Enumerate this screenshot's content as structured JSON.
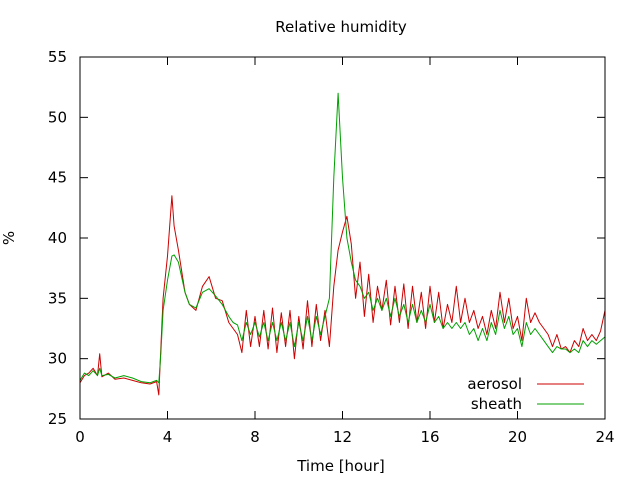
{
  "chart_data": {
    "type": "line",
    "title": "Relative humidity",
    "xlabel": "Time [hour]",
    "ylabel": "%",
    "xlim": [
      0,
      24
    ],
    "ylim": [
      25,
      55
    ],
    "xticks": [
      "0",
      "4",
      "8",
      "12",
      "16",
      "20",
      "24"
    ],
    "yticks": [
      "25",
      "30",
      "35",
      "40",
      "45",
      "50",
      "55"
    ],
    "grid": false,
    "legend_position": "bottom-right",
    "series": [
      {
        "name": "aerosol",
        "color": "#cc0000",
        "x": [
          0,
          0.2,
          0.4,
          0.6,
          0.8,
          0.9,
          1.0,
          1.3,
          1.6,
          2.0,
          2.4,
          2.8,
          3.2,
          3.5,
          3.6,
          3.7,
          3.8,
          4.0,
          4.2,
          4.3,
          4.5,
          4.8,
          5.0,
          5.3,
          5.6,
          5.9,
          6.2,
          6.5,
          6.8,
          7.0,
          7.2,
          7.4,
          7.6,
          7.8,
          8.0,
          8.2,
          8.4,
          8.6,
          8.8,
          9.0,
          9.2,
          9.4,
          9.6,
          9.8,
          10.0,
          10.2,
          10.4,
          10.6,
          10.8,
          11.0,
          11.2,
          11.4,
          11.6,
          11.8,
          12.0,
          12.2,
          12.4,
          12.6,
          12.8,
          13.0,
          13.2,
          13.4,
          13.6,
          13.8,
          14.0,
          14.2,
          14.4,
          14.6,
          14.8,
          15.0,
          15.2,
          15.4,
          15.6,
          15.8,
          16.0,
          16.2,
          16.4,
          16.6,
          16.8,
          17.0,
          17.2,
          17.4,
          17.6,
          17.8,
          18.0,
          18.2,
          18.4,
          18.6,
          18.8,
          19.0,
          19.2,
          19.4,
          19.6,
          19.8,
          20.0,
          20.2,
          20.4,
          20.6,
          20.8,
          21.0,
          21.2,
          21.4,
          21.6,
          21.8,
          22.0,
          22.2,
          22.4,
          22.6,
          22.8,
          23.0,
          23.2,
          23.4,
          23.6,
          23.8,
          24.0
        ],
        "y": [
          28.0,
          28.6,
          28.8,
          29.2,
          28.6,
          30.4,
          28.5,
          28.8,
          28.3,
          28.4,
          28.2,
          28.0,
          27.9,
          28.1,
          27.0,
          31.0,
          35.0,
          38.5,
          43.5,
          41.0,
          39.0,
          35.5,
          34.5,
          34.0,
          36.0,
          36.8,
          35.0,
          34.8,
          33.0,
          32.5,
          32.0,
          30.5,
          34.0,
          31.0,
          33.5,
          31.0,
          34.0,
          30.8,
          34.2,
          30.5,
          33.8,
          31.0,
          34.0,
          30.0,
          33.5,
          30.8,
          34.8,
          31.0,
          34.5,
          31.5,
          34.0,
          31.0,
          36.0,
          39.0,
          40.5,
          41.8,
          39.5,
          35.0,
          38.0,
          33.5,
          37.0,
          33.0,
          36.0,
          34.0,
          36.5,
          32.8,
          36.0,
          33.0,
          36.2,
          32.5,
          36.0,
          33.0,
          35.5,
          32.5,
          36.0,
          33.0,
          35.5,
          32.5,
          34.5,
          33.0,
          36.0,
          33.0,
          35.0,
          33.0,
          34.0,
          32.5,
          33.5,
          32.0,
          34.0,
          32.5,
          35.5,
          33.0,
          35.0,
          32.5,
          33.5,
          31.5,
          35.0,
          33.0,
          33.8,
          33.0,
          32.5,
          32.0,
          31.0,
          32.0,
          30.8,
          31.0,
          30.5,
          31.5,
          31.0,
          32.5,
          31.5,
          32.0,
          31.5,
          32.3,
          34.0
        ]
      },
      {
        "name": "sheath",
        "color": "#00a000",
        "x": [
          0,
          0.2,
          0.4,
          0.6,
          0.8,
          0.9,
          1.0,
          1.3,
          1.6,
          2.0,
          2.4,
          2.8,
          3.2,
          3.5,
          3.6,
          3.7,
          3.8,
          4.0,
          4.2,
          4.3,
          4.5,
          4.8,
          5.0,
          5.3,
          5.6,
          5.9,
          6.2,
          6.5,
          6.8,
          7.0,
          7.2,
          7.4,
          7.6,
          7.8,
          8.0,
          8.2,
          8.4,
          8.6,
          8.8,
          9.0,
          9.2,
          9.4,
          9.6,
          9.8,
          10.0,
          10.2,
          10.4,
          10.6,
          10.8,
          11.0,
          11.2,
          11.4,
          11.6,
          11.8,
          12.0,
          12.2,
          12.4,
          12.6,
          12.8,
          13.0,
          13.2,
          13.4,
          13.6,
          13.8,
          14.0,
          14.2,
          14.4,
          14.6,
          14.8,
          15.0,
          15.2,
          15.4,
          15.6,
          15.8,
          16.0,
          16.2,
          16.4,
          16.6,
          16.8,
          17.0,
          17.2,
          17.4,
          17.6,
          17.8,
          18.0,
          18.2,
          18.4,
          18.6,
          18.8,
          19.0,
          19.2,
          19.4,
          19.6,
          19.8,
          20.0,
          20.2,
          20.4,
          20.6,
          20.8,
          21.0,
          21.2,
          21.4,
          21.6,
          21.8,
          22.0,
          22.2,
          22.4,
          22.6,
          22.8,
          23.0,
          23.2,
          23.4,
          23.6,
          23.8,
          24.0
        ],
        "y": [
          28.2,
          28.8,
          28.6,
          29.0,
          28.6,
          29.2,
          28.6,
          28.7,
          28.4,
          28.6,
          28.4,
          28.1,
          28.0,
          28.2,
          28.0,
          30.5,
          34.0,
          36.5,
          38.5,
          38.6,
          38.0,
          35.5,
          34.5,
          34.2,
          35.5,
          35.8,
          35.2,
          34.5,
          33.5,
          33.0,
          32.8,
          31.5,
          33.0,
          32.0,
          33.0,
          31.8,
          33.0,
          31.5,
          33.0,
          31.5,
          33.0,
          31.5,
          33.0,
          31.0,
          33.0,
          31.5,
          33.5,
          31.5,
          33.5,
          32.0,
          33.5,
          35.0,
          45.0,
          52.0,
          45.0,
          40.0,
          38.0,
          36.5,
          36.0,
          35.0,
          35.5,
          34.0,
          35.0,
          34.0,
          35.0,
          33.5,
          35.0,
          33.5,
          34.5,
          33.0,
          34.5,
          33.0,
          34.0,
          33.0,
          34.5,
          33.0,
          33.5,
          32.5,
          33.0,
          32.5,
          33.0,
          32.5,
          33.0,
          32.0,
          32.5,
          31.5,
          32.5,
          31.5,
          33.0,
          32.0,
          34.0,
          32.5,
          33.5,
          32.0,
          32.5,
          31.0,
          33.0,
          32.0,
          32.5,
          32.0,
          31.5,
          31.0,
          30.5,
          31.0,
          30.8,
          30.8,
          30.5,
          30.8,
          30.5,
          31.5,
          31.0,
          31.5,
          31.2,
          31.5,
          31.8
        ]
      }
    ]
  }
}
